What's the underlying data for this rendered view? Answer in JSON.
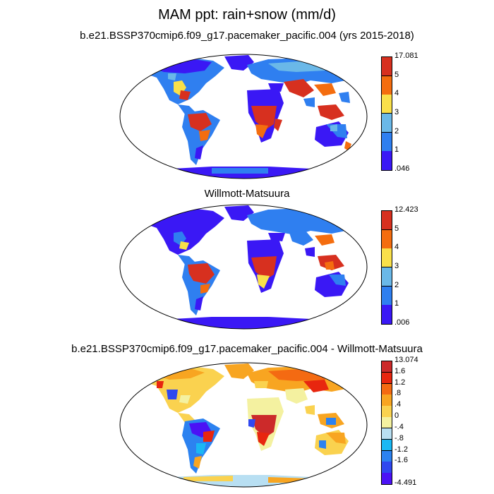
{
  "title": "MAM ppt: rain+snow (mm/d)",
  "panels": [
    {
      "title": "b.e21.BSSP370cmip6.f09_g17.pacemaker_pacific.004 (yrs 2015-2018)",
      "colorbar": {
        "max_label": "17.081",
        "min_label": ".046",
        "levels": [
          "5",
          "4",
          "3",
          "2",
          "1"
        ],
        "colors": [
          "#d7301f",
          "#f46d0f",
          "#f9e04a",
          "#6ab8e8",
          "#2f7ff0",
          "#3a18f5"
        ]
      }
    },
    {
      "title": "Willmott-Matsuura",
      "colorbar": {
        "max_label": "12.423",
        "min_label": ".006",
        "levels": [
          "5",
          "4",
          "3",
          "2",
          "1"
        ],
        "colors": [
          "#d7301f",
          "#f46d0f",
          "#f9e04a",
          "#6ab8e8",
          "#2f7ff0",
          "#3a18f5"
        ]
      }
    },
    {
      "title": "b.e21.BSSP370cmip6.f09_g17.pacemaker_pacific.004 - Willmott-Matsuura",
      "colorbar": {
        "max_label": "13.074",
        "min_label": "-4.491",
        "levels": [
          "1.6",
          "1.2",
          ".8",
          ".4",
          "0",
          "-.4",
          "-.8",
          "-1.2",
          "-1.6"
        ],
        "colors": [
          "#cc2a2a",
          "#e8260f",
          "#f46a12",
          "#f8a521",
          "#fad24f",
          "#f4f1a0",
          "#b8dff2",
          "#1ab8f4",
          "#2c82f0",
          "#3048f0",
          "#4b12f5"
        ]
      }
    }
  ]
}
